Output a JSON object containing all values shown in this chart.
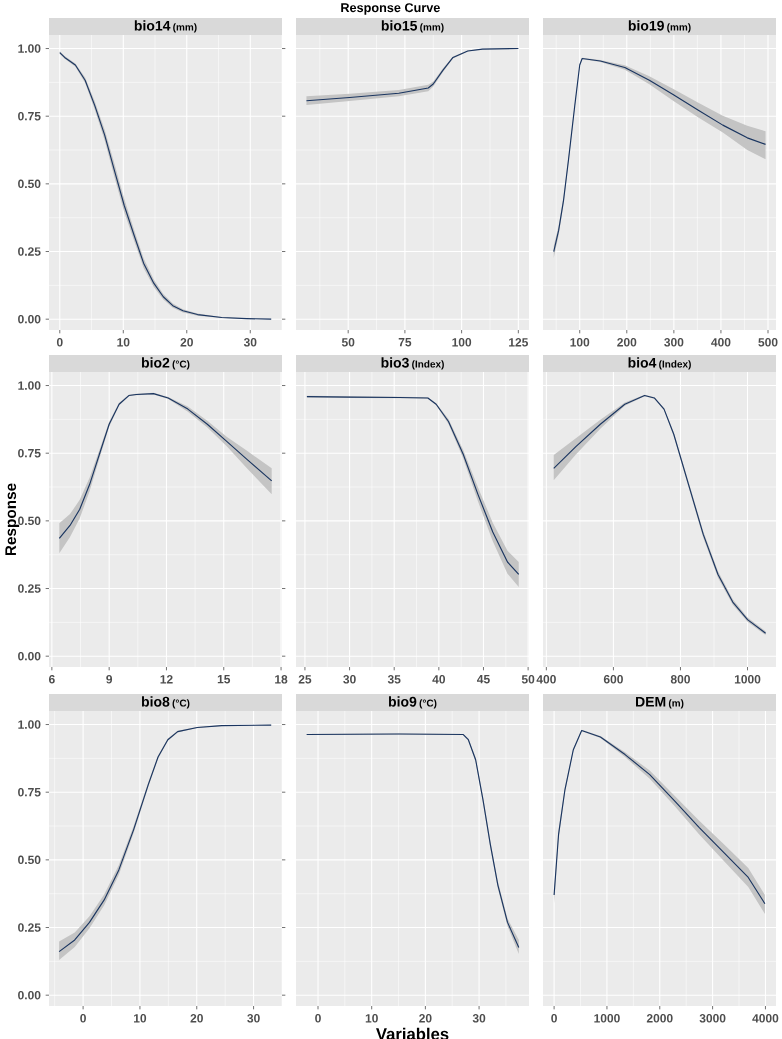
{
  "chart_data": [
    {
      "type": "line",
      "title": "bio14",
      "subtitle": "(mm)",
      "xlim": [
        -1.7,
        35
      ],
      "xticks": [
        0,
        10,
        20,
        30
      ],
      "ylim": [
        -0.04,
        1.05
      ],
      "yticks": [
        {
          "value": 0,
          "label": "0.00"
        },
        {
          "value": 0.25,
          "label": "0.25"
        },
        {
          "value": 0.5,
          "label": "0.50"
        },
        {
          "value": 0.75,
          "label": "0.75"
        },
        {
          "value": 1,
          "label": "1.00"
        }
      ],
      "grid": true,
      "series": [
        {
          "color": "#1a3560",
          "x": [
            0,
            0.77,
            2.45,
            3.99,
            5.5,
            7.07,
            8.6,
            10.15,
            11.7,
            13.2,
            14.8,
            16.3,
            17.8,
            19.4,
            21.7,
            25.5,
            29.4,
            33.3
          ],
          "values": [
            0.985,
            0.967,
            0.939,
            0.883,
            0.79,
            0.68,
            0.55,
            0.42,
            0.31,
            0.207,
            0.133,
            0.083,
            0.05,
            0.031,
            0.017,
            0.006,
            0.002,
            0.0
          ],
          "lower": [
            0.98,
            0.962,
            0.933,
            0.873,
            0.775,
            0.66,
            0.525,
            0.395,
            0.29,
            0.189,
            0.119,
            0.073,
            0.042,
            0.025,
            0.013,
            0.004,
            0.001,
            0.0
          ],
          "upper": [
            0.99,
            0.972,
            0.945,
            0.893,
            0.805,
            0.7,
            0.575,
            0.445,
            0.33,
            0.225,
            0.147,
            0.093,
            0.058,
            0.037,
            0.021,
            0.008,
            0.003,
            0.001
          ]
        }
      ]
    },
    {
      "type": "line",
      "title": "bio15",
      "subtitle": "(mm)",
      "annotations": [
        "Response Curve"
      ],
      "xlim": [
        27,
        129.7
      ],
      "xticks": [
        50,
        75,
        100,
        125
      ],
      "ylim": [
        -0.04,
        1.05
      ],
      "yticks": [
        {
          "value": 0,
          "label": null
        },
        {
          "value": 0.25,
          "label": null
        },
        {
          "value": 0.5,
          "label": null
        },
        {
          "value": 0.75,
          "label": null
        },
        {
          "value": 1,
          "label": null
        }
      ],
      "tick_labels": "x",
      "grid": true,
      "series": [
        {
          "color": "#1a3560",
          "x": [
            31.6,
            50.65,
            72.3,
            85.3,
            87.5,
            91.8,
            96.2,
            102.7,
            109.2,
            125
          ],
          "values": [
            0.807,
            0.819,
            0.835,
            0.854,
            0.869,
            0.92,
            0.967,
            0.991,
            0.998,
            1.0
          ],
          "lower": [
            0.791,
            0.806,
            0.824,
            0.842,
            0.86,
            0.913,
            0.963,
            0.989,
            0.997,
            0.999
          ],
          "upper": [
            0.824,
            0.833,
            0.847,
            0.866,
            0.878,
            0.927,
            0.971,
            0.993,
            0.999,
            1.0
          ]
        }
      ]
    },
    {
      "type": "line",
      "title": "bio19",
      "subtitle": "(mm)",
      "xlim": [
        22,
        517
      ],
      "xticks": [
        100,
        200,
        300,
        400,
        500
      ],
      "ylim": [
        -0.04,
        1.05
      ],
      "yticks": [
        {
          "value": 0,
          "label": null
        },
        {
          "value": 0.25,
          "label": null
        },
        {
          "value": 0.5,
          "label": null
        },
        {
          "value": 0.75,
          "label": null
        },
        {
          "value": 1,
          "label": null
        }
      ],
      "tick_labels": "x",
      "grid": true,
      "series": [
        {
          "color": "#1a3560",
          "x": [
            44.8,
            55.2,
            65.6,
            76,
            89.6,
            100,
            105.2,
            143.75,
            195.8,
            247.9,
            300,
            352,
            404,
            456,
            494.8
          ],
          "values": [
            0.25,
            0.328,
            0.439,
            0.587,
            0.791,
            0.939,
            0.963,
            0.954,
            0.93,
            0.883,
            0.828,
            0.772,
            0.717,
            0.67,
            0.646
          ],
          "lower": [
            0.226,
            0.31,
            0.425,
            0.577,
            0.785,
            0.935,
            0.96,
            0.95,
            0.922,
            0.868,
            0.805,
            0.745,
            0.69,
            0.625,
            0.591
          ],
          "upper": [
            0.27,
            0.345,
            0.452,
            0.597,
            0.797,
            0.943,
            0.966,
            0.958,
            0.938,
            0.898,
            0.85,
            0.8,
            0.752,
            0.715,
            0.694
          ]
        }
      ]
    },
    {
      "type": "line",
      "title": "bio2",
      "subtitle": "(°C)",
      "ylabel": "Response",
      "xlim": [
        5.85,
        18.05
      ],
      "xticks": [
        6,
        9,
        12,
        15,
        18
      ],
      "ylim": [
        -0.04,
        1.05
      ],
      "yticks": [
        {
          "value": 0,
          "label": "0.00"
        },
        {
          "value": 0.25,
          "label": "0.25"
        },
        {
          "value": 0.5,
          "label": "0.50"
        },
        {
          "value": 0.75,
          "label": "0.75"
        },
        {
          "value": 1,
          "label": "1.00"
        }
      ],
      "grid": true,
      "series": [
        {
          "color": "#1a3560",
          "x": [
            6.39,
            6.95,
            7.46,
            7.98,
            8.49,
            9.0,
            9.52,
            10.03,
            10.42,
            11.32,
            12.09,
            13.12,
            14.14,
            15.17,
            16.2,
            17.51
          ],
          "values": [
            0.435,
            0.483,
            0.543,
            0.635,
            0.746,
            0.857,
            0.931,
            0.963,
            0.967,
            0.97,
            0.954,
            0.913,
            0.857,
            0.793,
            0.728,
            0.648
          ],
          "lower": [
            0.38,
            0.44,
            0.51,
            0.61,
            0.73,
            0.848,
            0.926,
            0.96,
            0.964,
            0.967,
            0.95,
            0.903,
            0.845,
            0.775,
            0.695,
            0.598
          ],
          "upper": [
            0.491,
            0.525,
            0.578,
            0.66,
            0.762,
            0.866,
            0.936,
            0.966,
            0.97,
            0.973,
            0.958,
            0.923,
            0.87,
            0.81,
            0.76,
            0.694
          ]
        }
      ]
    },
    {
      "type": "line",
      "title": "bio3",
      "subtitle": "(Index)",
      "xlim": [
        24,
        50.1
      ],
      "xticks": [
        25,
        30,
        35,
        40,
        45,
        50
      ],
      "ylim": [
        -0.04,
        1.05
      ],
      "yticks": [
        {
          "value": 0,
          "label": null
        },
        {
          "value": 0.25,
          "label": null
        },
        {
          "value": 0.5,
          "label": null
        },
        {
          "value": 0.75,
          "label": null
        },
        {
          "value": 1,
          "label": null
        }
      ],
      "tick_labels": "x",
      "grid": true,
      "series": [
        {
          "color": "#1a3560",
          "x": [
            25.22,
            30.07,
            35.57,
            38.77,
            39.7,
            41.08,
            42.73,
            44.38,
            46.04,
            47.69,
            48.95
          ],
          "values": [
            0.959,
            0.957,
            0.956,
            0.954,
            0.931,
            0.867,
            0.746,
            0.598,
            0.459,
            0.348,
            0.302
          ],
          "lower": [
            0.956,
            0.954,
            0.953,
            0.951,
            0.927,
            0.858,
            0.73,
            0.572,
            0.425,
            0.305,
            0.256
          ],
          "upper": [
            0.962,
            0.96,
            0.959,
            0.957,
            0.935,
            0.876,
            0.762,
            0.624,
            0.493,
            0.39,
            0.348
          ]
        }
      ]
    },
    {
      "type": "line",
      "title": "bio4",
      "subtitle": "(Index)",
      "xlim": [
        390,
        1085
      ],
      "xticks": [
        400,
        600,
        800,
        1000
      ],
      "ylim": [
        -0.04,
        1.05
      ],
      "yticks": [
        {
          "value": 0,
          "label": null
        },
        {
          "value": 0.25,
          "label": null
        },
        {
          "value": 0.5,
          "label": null
        },
        {
          "value": 0.75,
          "label": null
        },
        {
          "value": 1,
          "label": null
        }
      ],
      "tick_labels": "x",
      "grid": true,
      "series": [
        {
          "color": "#1a3560",
          "x": [
            422,
            488,
            561,
            634,
            693,
            722,
            751,
            780,
            824,
            868,
            912,
            956,
            1000,
            1054
          ],
          "values": [
            0.694,
            0.774,
            0.857,
            0.931,
            0.963,
            0.954,
            0.913,
            0.82,
            0.635,
            0.45,
            0.302,
            0.2,
            0.135,
            0.085
          ],
          "lower": [
            0.65,
            0.745,
            0.84,
            0.925,
            0.96,
            0.951,
            0.909,
            0.813,
            0.625,
            0.438,
            0.29,
            0.19,
            0.127,
            0.078
          ],
          "upper": [
            0.743,
            0.805,
            0.874,
            0.937,
            0.966,
            0.957,
            0.917,
            0.827,
            0.645,
            0.462,
            0.314,
            0.21,
            0.143,
            0.092
          ]
        }
      ]
    },
    {
      "type": "line",
      "title": "bio8",
      "subtitle": "(°C)",
      "xlim": [
        -6,
        35
      ],
      "xticks": [
        0,
        10,
        20,
        30
      ],
      "ylim": [
        -0.04,
        1.05
      ],
      "yticks": [
        {
          "value": 0,
          "label": "0.00"
        },
        {
          "value": 0.25,
          "label": "0.25"
        },
        {
          "value": 0.5,
          "label": "0.50"
        },
        {
          "value": 0.75,
          "label": "0.75"
        },
        {
          "value": 1,
          "label": "1.00"
        }
      ],
      "grid": true,
      "series": [
        {
          "color": "#1a3560",
          "x": [
            -4.22,
            -1.47,
            1.12,
            3.71,
            6.29,
            8.88,
            11.47,
            13.19,
            14.91,
            16.64,
            20.09,
            24.4,
            33.1
          ],
          "values": [
            0.161,
            0.204,
            0.269,
            0.352,
            0.463,
            0.611,
            0.778,
            0.88,
            0.944,
            0.974,
            0.989,
            0.996,
            0.998
          ],
          "lower": [
            0.13,
            0.178,
            0.247,
            0.332,
            0.445,
            0.598,
            0.769,
            0.874,
            0.94,
            0.971,
            0.987,
            0.995,
            0.997
          ],
          "upper": [
            0.198,
            0.232,
            0.292,
            0.372,
            0.481,
            0.624,
            0.787,
            0.886,
            0.948,
            0.977,
            0.991,
            0.997,
            0.999
          ]
        }
      ]
    },
    {
      "type": "line",
      "title": "bio9",
      "subtitle": "(°C)",
      "xlabel": "Variables",
      "xlim": [
        -4.1,
        39.3
      ],
      "xticks": [
        0,
        10,
        20,
        30
      ],
      "ylim": [
        -0.04,
        1.05
      ],
      "yticks": [
        {
          "value": 0,
          "label": null
        },
        {
          "value": 0.25,
          "label": null
        },
        {
          "value": 0.5,
          "label": null
        },
        {
          "value": 0.75,
          "label": null
        },
        {
          "value": 1,
          "label": null
        }
      ],
      "tick_labels": "x",
      "grid": true,
      "series": [
        {
          "color": "#1a3560",
          "x": [
            -2.11,
            15.1,
            27.06,
            28,
            29.36,
            30.73,
            32.1,
            33.5,
            35.3,
            37.4
          ],
          "values": [
            0.963,
            0.965,
            0.963,
            0.944,
            0.87,
            0.722,
            0.556,
            0.407,
            0.269,
            0.176
          ],
          "lower": [
            0.961,
            0.963,
            0.961,
            0.94,
            0.862,
            0.71,
            0.543,
            0.394,
            0.255,
            0.152
          ],
          "upper": [
            0.965,
            0.967,
            0.965,
            0.948,
            0.878,
            0.734,
            0.569,
            0.42,
            0.283,
            0.204
          ]
        }
      ]
    },
    {
      "type": "line",
      "title": "DEM",
      "subtitle": "(m)",
      "xlim": [
        -210,
        4200
      ],
      "xticks": [
        0,
        1000,
        2000,
        3000,
        4000
      ],
      "ylim": [
        -0.04,
        1.05
      ],
      "yticks": [
        {
          "value": 0,
          "label": null
        },
        {
          "value": 0.25,
          "label": null
        },
        {
          "value": 0.5,
          "label": null
        },
        {
          "value": 0.75,
          "label": null
        },
        {
          "value": 1,
          "label": null
        }
      ],
      "tick_labels": "x",
      "grid": true,
      "series": [
        {
          "color": "#1a3560",
          "x": [
            0,
            84,
            205,
            364,
            522,
            877,
            1343,
            1810,
            2276,
            2743,
            3209,
            3675,
            3990
          ],
          "values": [
            0.37,
            0.593,
            0.759,
            0.907,
            0.978,
            0.954,
            0.889,
            0.815,
            0.719,
            0.62,
            0.528,
            0.435,
            0.338
          ],
          "lower": [
            0.34,
            0.575,
            0.748,
            0.902,
            0.975,
            0.95,
            0.88,
            0.8,
            0.7,
            0.595,
            0.497,
            0.4,
            0.3
          ],
          "upper": [
            0.39,
            0.61,
            0.77,
            0.912,
            0.981,
            0.958,
            0.898,
            0.83,
            0.738,
            0.645,
            0.559,
            0.47,
            0.37
          ]
        }
      ]
    }
  ]
}
